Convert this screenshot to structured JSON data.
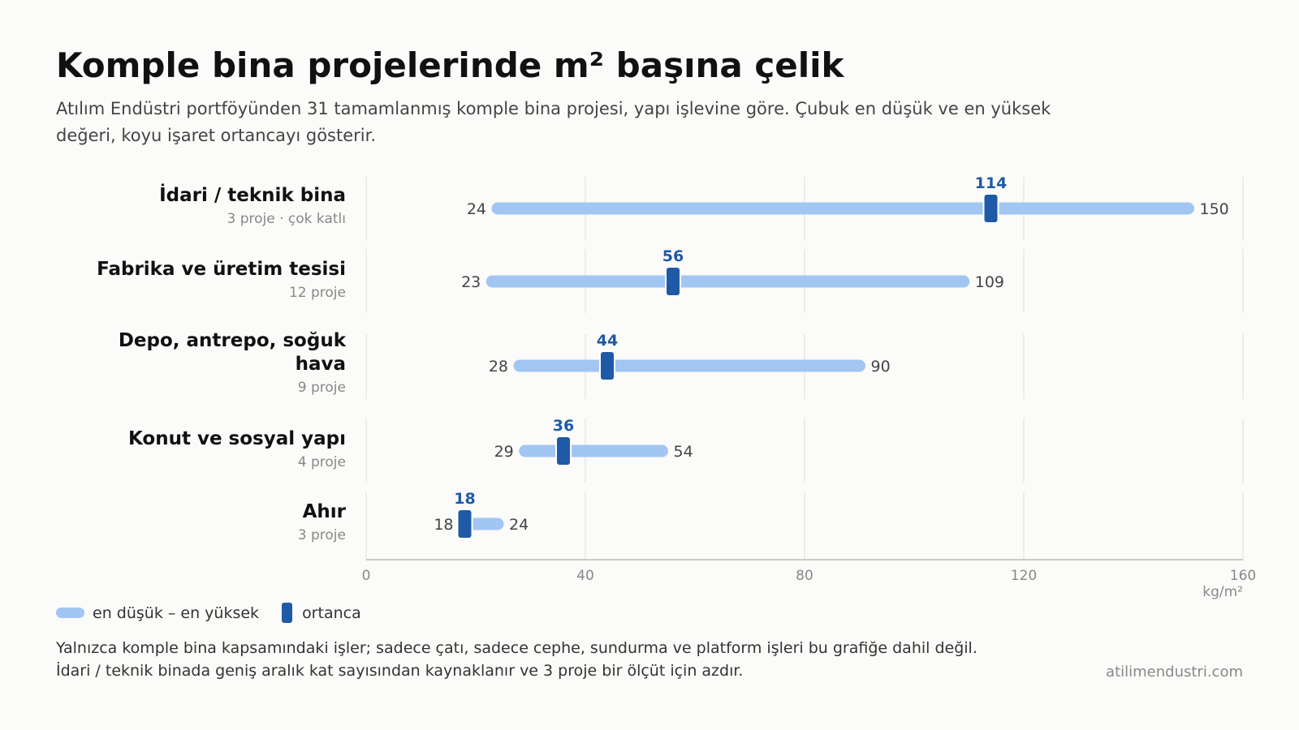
{
  "header": {
    "title": "Komple bina projelerinde m² başına çelik",
    "subtitle": "Atılım Endüstri portföyünden 31 tamamlanmış komple bina projesi, yapı işlevine göre. Çubuk en düşük ve en yüksek değeri, koyu işaret ortancayı gösterir."
  },
  "chart_data": {
    "type": "range_dot",
    "categories": [
      {
        "label": "İdari / teknik bina",
        "sub": "3 proje · çok katlı",
        "min": 24,
        "max": 150,
        "median": 114
      },
      {
        "label": "Fabrika ve üretim tesisi",
        "sub": "12 proje",
        "min": 23,
        "max": 109,
        "median": 56
      },
      {
        "label": "Depo, antrepo, soğuk hava",
        "sub": "9 proje",
        "min": 28,
        "max": 90,
        "median": 44
      },
      {
        "label": "Konut ve sosyal yapı",
        "sub": "4 proje",
        "min": 29,
        "max": 54,
        "median": 36
      },
      {
        "label": "Ahır",
        "sub": "3 proje",
        "min": 18,
        "max": 24,
        "median": 18
      }
    ],
    "xlim": [
      0,
      160
    ],
    "xticks": [
      0,
      40,
      80,
      120,
      160
    ],
    "xunit": "kg/m²",
    "grid": true,
    "colors": {
      "range": "#a2c6f2",
      "median": "#1f5aa6",
      "grid": "#dddddd",
      "axis": "#bbbbbb"
    }
  },
  "legend": {
    "range_label": "en düşük – en yüksek",
    "median_label": "ortanca"
  },
  "footer": {
    "note_line1": "Yalnızca komple bina kapsamındaki işler; sadece çatı, sadece cephe, sundurma ve platform işleri bu grafiğe dahil değil.",
    "note_line2": "İdari / teknik binada geniş aralık kat sayısından kaynaklanır ve 3 proje bir ölçüt için azdır.",
    "source": "atilimendustri.com"
  }
}
